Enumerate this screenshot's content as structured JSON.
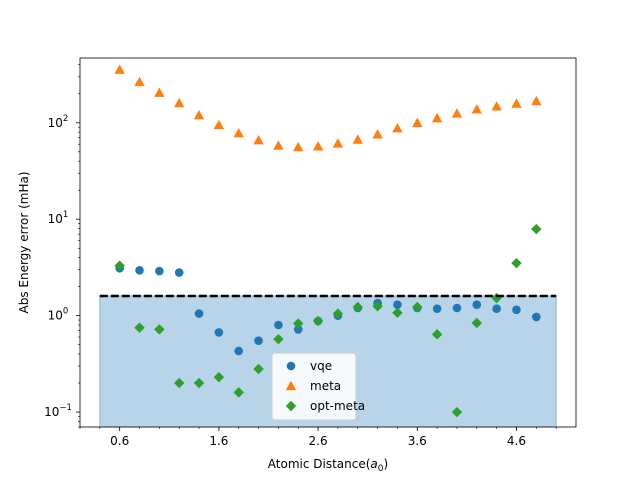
{
  "chart_data": {
    "type": "scatter",
    "xlabel": "Atomic Distance(",
    "xlabel_sym": "a",
    "xlabel_sub": "0",
    "xlabel_close": ")",
    "ylabel": "Abs Energy error (mHa)",
    "y_scale": "log",
    "xlim": [
      0.2,
      5.2
    ],
    "ylim": [
      0.07,
      470
    ],
    "xticks": [
      0.6,
      1.6,
      2.6,
      3.6,
      4.6
    ],
    "xtick_labels": [
      "0.6",
      "1.6",
      "2.6",
      "3.6",
      "4.6"
    ],
    "yticks": [
      0.1,
      1,
      10,
      100
    ],
    "legend_position": "lower-center",
    "threshold": {
      "y": 1.6,
      "x_start": 0.4,
      "x_end": 5.0,
      "fill_color": "#b8d4e8",
      "line_color": "#000000"
    },
    "series": [
      {
        "name": "vqe",
        "marker": "circle",
        "color": "#1f77b4",
        "x": [
          0.6,
          0.8,
          1.0,
          1.2,
          1.4,
          1.6,
          1.8,
          2.0,
          2.2,
          2.4,
          2.6,
          2.8,
          3.0,
          3.2,
          3.4,
          3.6,
          3.8,
          4.0,
          4.2,
          4.4,
          4.6,
          4.8
        ],
        "y": [
          3.1,
          2.95,
          2.9,
          2.8,
          1.05,
          0.67,
          0.43,
          0.55,
          0.8,
          0.72,
          0.88,
          1.0,
          1.2,
          1.35,
          1.3,
          1.2,
          1.18,
          1.2,
          1.3,
          1.18,
          1.15,
          0.97
        ]
      },
      {
        "name": "meta",
        "marker": "triangle",
        "color": "#ff7f0e",
        "x": [
          0.6,
          0.8,
          1.0,
          1.2,
          1.4,
          1.6,
          1.8,
          2.0,
          2.2,
          2.4,
          2.6,
          2.8,
          3.0,
          3.2,
          3.4,
          3.6,
          3.8,
          4.0,
          4.2,
          4.4,
          4.6,
          4.8
        ],
        "y": [
          355,
          265,
          205,
          160,
          120,
          95,
          78,
          66,
          58,
          56,
          57,
          61,
          67,
          76,
          88,
          100,
          112,
          125,
          138,
          148,
          158,
          168
        ]
      },
      {
        "name": "opt-meta",
        "marker": "diamond",
        "color": "#2ca02c",
        "x": [
          0.6,
          0.8,
          1.0,
          1.2,
          1.4,
          1.6,
          1.8,
          2.0,
          2.2,
          2.4,
          2.6,
          2.8,
          3.0,
          3.2,
          3.4,
          3.6,
          3.8,
          4.0,
          4.2,
          4.4,
          4.6,
          4.8
        ],
        "y": [
          3.3,
          0.75,
          0.72,
          0.2,
          0.2,
          0.23,
          0.16,
          0.28,
          0.57,
          0.83,
          0.88,
          1.05,
          1.23,
          1.25,
          1.07,
          1.23,
          0.64,
          0.1,
          0.84,
          1.52,
          3.5,
          7.9
        ]
      }
    ]
  }
}
